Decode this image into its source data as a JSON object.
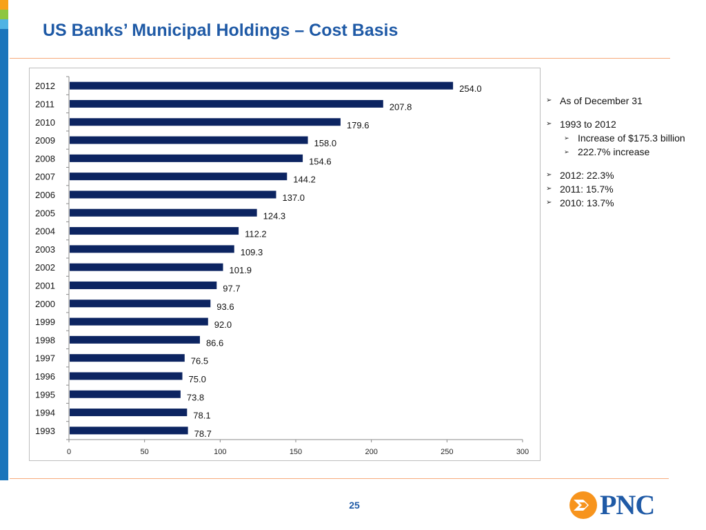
{
  "title": "US Banks’ Municipal Holdings – Cost Basis",
  "page_number": "25",
  "logo": {
    "text": "PNC",
    "icon": "pnc-logo-icon"
  },
  "colors": {
    "bar": "#0c2461",
    "title": "#1f5aa6",
    "accent_orange": "#f7941d",
    "left_bar": "#1b75bb",
    "rule": "#f7a97a"
  },
  "bullets": [
    {
      "text": "As of December 31",
      "level": 1
    },
    {
      "text": "1993 to 2012",
      "level": 1
    },
    {
      "text": "Increase of $175.3 billion",
      "level": 2
    },
    {
      "text": "222.7% increase",
      "level": 2
    },
    {
      "text": "2012:  22.3%",
      "level": 1
    },
    {
      "text": "2011:  15.7%",
      "level": 1
    },
    {
      "text": "2010:  13.7%",
      "level": 1
    }
  ],
  "chart_data": {
    "type": "bar",
    "orientation": "horizontal",
    "title": "",
    "xlabel": "",
    "ylabel": "",
    "xlim": [
      0,
      300
    ],
    "x_ticks": [
      "0",
      "50",
      "100",
      "150",
      "200",
      "250",
      "300"
    ],
    "grid": false,
    "legend": "none",
    "categories": [
      "2012",
      "2011",
      "2010",
      "2009",
      "2008",
      "2007",
      "2006",
      "2005",
      "2004",
      "2003",
      "2002",
      "2001",
      "2000",
      "1999",
      "1998",
      "1997",
      "1996",
      "1995",
      "1994",
      "1993"
    ],
    "values": [
      254.0,
      207.8,
      179.6,
      158.0,
      154.6,
      144.2,
      137.0,
      124.3,
      112.2,
      109.3,
      101.9,
      97.7,
      93.6,
      92.0,
      86.6,
      76.5,
      75.0,
      73.8,
      78.1,
      78.7
    ],
    "data_labels": [
      "254.0",
      "207.8",
      "179.6",
      "158.0",
      "154.6",
      "144.2",
      "137.0",
      "124.3",
      "112.2",
      "109.3",
      "101.9",
      "97.7",
      "93.6",
      "92.0",
      "86.6",
      "76.5",
      "75.0",
      "73.8",
      "78.1",
      "78.7"
    ]
  }
}
